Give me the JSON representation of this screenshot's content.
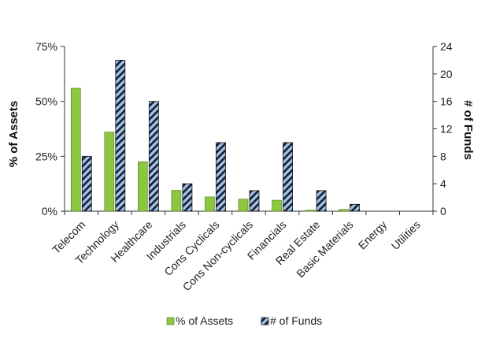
{
  "chart_data": {
    "type": "bar",
    "categories": [
      "Telecom",
      "Technology",
      "Healthcare",
      "Industrials",
      "Cons Cyclicals",
      "Cons Non-cyclicals",
      "Financials",
      "Real Estate",
      "Basic Materials",
      "Energy",
      "Utilities"
    ],
    "series": [
      {
        "name": "% of Assets",
        "axis": "left",
        "color": "#8dc63f",
        "values": [
          56,
          36,
          22.5,
          9.5,
          6.5,
          5.5,
          5,
          0.5,
          0.8,
          0,
          0
        ]
      },
      {
        "name": "# of Funds",
        "axis": "right",
        "color": "#9dc3e6",
        "pattern": "diagonal-stripes",
        "values": [
          8,
          22,
          16,
          4,
          10,
          3,
          10,
          3,
          1,
          0,
          0
        ]
      }
    ],
    "ylabel": "% of Assets",
    "y2label": "# of Funds",
    "ylim": [
      0,
      75
    ],
    "y2lim": [
      0,
      24
    ],
    "yticks": [
      "0%",
      "25%",
      "50%",
      "75%"
    ],
    "y2ticks": [
      "0",
      "4",
      "8",
      "12",
      "16",
      "20",
      "24"
    ],
    "legend_position": "bottom",
    "grid": false
  }
}
